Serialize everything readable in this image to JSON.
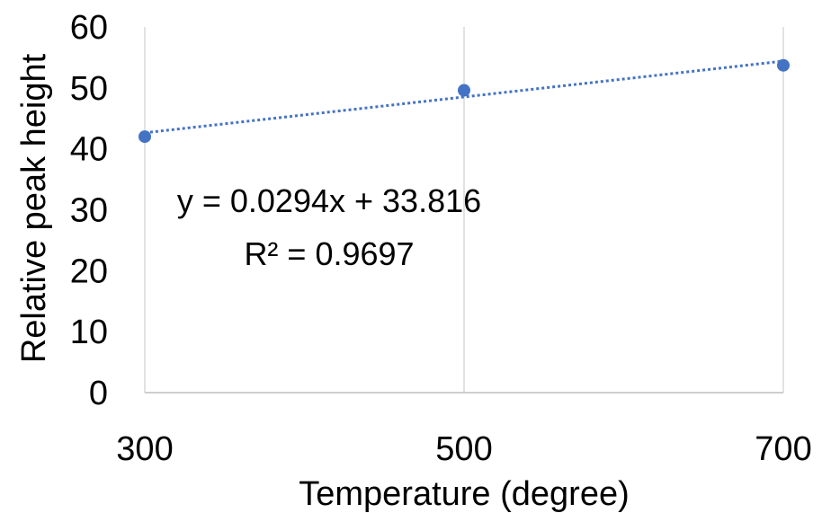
{
  "chart_data": {
    "type": "scatter",
    "title": "",
    "xlabel": "Temperature (degree)",
    "ylabel": "Relative peak height",
    "x_ticks": [
      "300",
      "500",
      "700"
    ],
    "y_ticks": [
      "0",
      "10",
      "20",
      "30",
      "40",
      "50",
      "60"
    ],
    "xlim": [
      300,
      700
    ],
    "ylim": [
      0,
      60
    ],
    "grid": "vertical",
    "points": [
      {
        "x": 300,
        "y": 42
      },
      {
        "x": 500,
        "y": 49.6
      },
      {
        "x": 700,
        "y": 53.7
      }
    ],
    "trendline": {
      "type": "linear",
      "slope": 0.0294,
      "intercept": 33.816,
      "equation": "y = 0.0294x + 33.816",
      "r_squared_label": "R² = 0.9697"
    },
    "colors": {
      "marker": "#4472c4",
      "trendline": "#4472c4",
      "gridline": "#d9d9d9",
      "axis": "#bfbfbf"
    }
  }
}
